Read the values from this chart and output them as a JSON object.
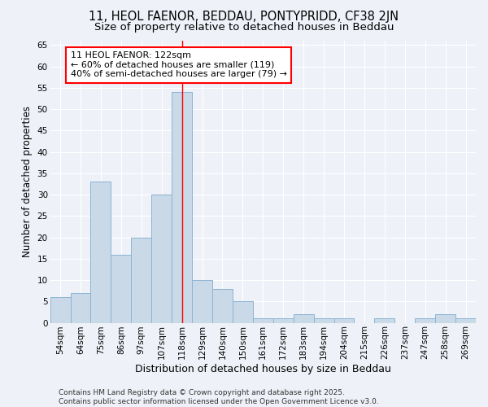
{
  "title1": "11, HEOL FAENOR, BEDDAU, PONTYPRIDD, CF38 2JN",
  "title2": "Size of property relative to detached houses in Beddau",
  "xlabel": "Distribution of detached houses by size in Beddau",
  "ylabel": "Number of detached properties",
  "categories": [
    "54sqm",
    "64sqm",
    "75sqm",
    "86sqm",
    "97sqm",
    "107sqm",
    "118sqm",
    "129sqm",
    "140sqm",
    "150sqm",
    "161sqm",
    "172sqm",
    "183sqm",
    "194sqm",
    "204sqm",
    "215sqm",
    "226sqm",
    "237sqm",
    "247sqm",
    "258sqm",
    "269sqm"
  ],
  "values": [
    6,
    7,
    33,
    16,
    20,
    30,
    54,
    10,
    8,
    5,
    1,
    1,
    2,
    1,
    1,
    0,
    1,
    0,
    1,
    2,
    1
  ],
  "bar_color": "#c9d9e8",
  "bar_edge_color": "#8ab4d4",
  "highlight_index": 6,
  "annotation_line1": "11 HEOL FAENOR: 122sqm",
  "annotation_line2": "← 60% of detached houses are smaller (119)",
  "annotation_line3": "40% of semi-detached houses are larger (79) →",
  "annotation_box_color": "white",
  "annotation_box_edge_color": "red",
  "ylim": [
    0,
    66
  ],
  "yticks": [
    0,
    5,
    10,
    15,
    20,
    25,
    30,
    35,
    40,
    45,
    50,
    55,
    60,
    65
  ],
  "background_color": "#eef2f8",
  "grid_color": "white",
  "footer_text": "Contains HM Land Registry data © Crown copyright and database right 2025.\nContains public sector information licensed under the Open Government Licence v3.0.",
  "title1_fontsize": 10.5,
  "title2_fontsize": 9.5,
  "xlabel_fontsize": 9,
  "ylabel_fontsize": 8.5,
  "tick_fontsize": 7.5,
  "annotation_fontsize": 8,
  "footer_fontsize": 6.5
}
